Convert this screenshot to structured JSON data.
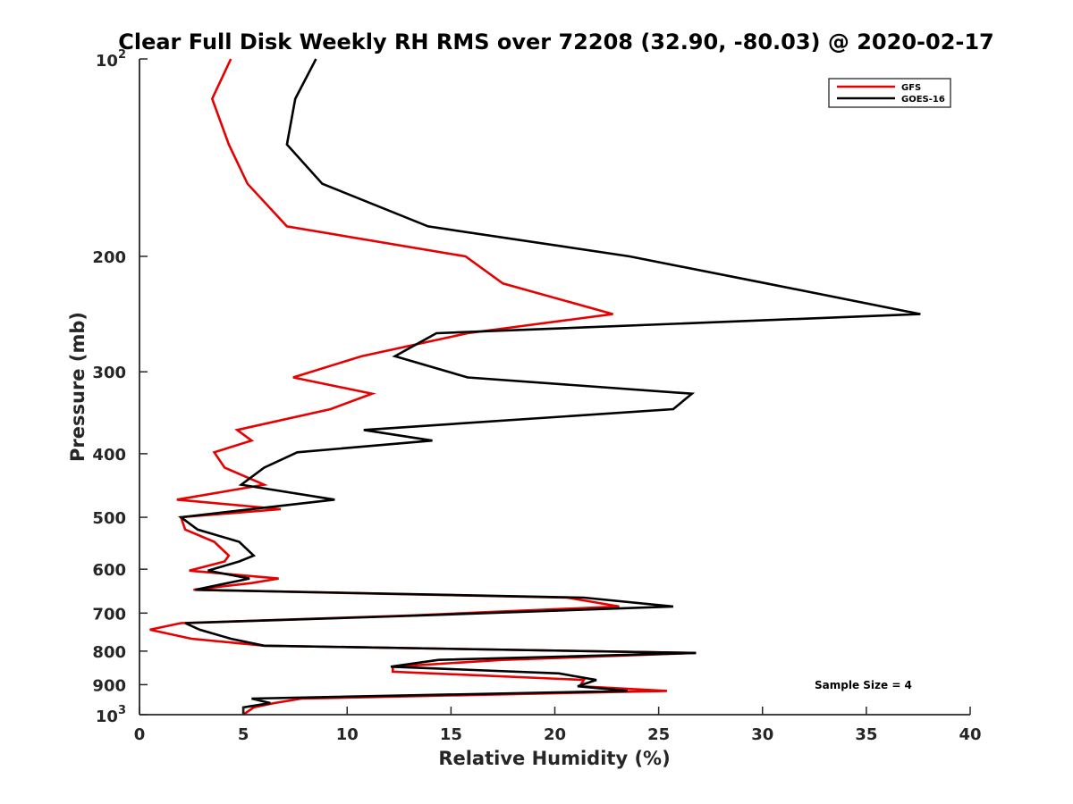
{
  "chart_data": {
    "type": "line",
    "title": "Clear Full Disk Weekly RH RMS over 72208 (32.90, -80.03) @ 2020-02-17",
    "xlabel": "Relative Humidity (%)",
    "ylabel": "Pressure (mb)",
    "xlim": [
      0,
      40
    ],
    "ylim": [
      100,
      1000
    ],
    "y_scale": "log",
    "y_reversed": true,
    "xticks": [
      0,
      5,
      10,
      15,
      20,
      25,
      30,
      35,
      40
    ],
    "yticks": [
      {
        "value": 100,
        "base": "10",
        "exp": "2"
      },
      {
        "value": 200,
        "label": "200"
      },
      {
        "value": 300,
        "label": "300"
      },
      {
        "value": 400,
        "label": "400"
      },
      {
        "value": 500,
        "label": "500"
      },
      {
        "value": 600,
        "label": "600"
      },
      {
        "value": 700,
        "label": "700"
      },
      {
        "value": 800,
        "label": "800"
      },
      {
        "value": 900,
        "label": "900"
      },
      {
        "value": 1000,
        "base": "10",
        "exp": "3"
      }
    ],
    "grid": false,
    "legend_position": "top-right",
    "annotation": "Sample Size = 4",
    "series": [
      {
        "name": "GFS",
        "color": "#e60000",
        "points": [
          [
            4.4,
            100
          ],
          [
            3.5,
            115
          ],
          [
            4.3,
            135
          ],
          [
            5.2,
            155
          ],
          [
            7.1,
            180
          ],
          [
            15.7,
            200
          ],
          [
            17.5,
            220
          ],
          [
            22.8,
            245
          ],
          [
            15.8,
            262
          ],
          [
            10.7,
            284
          ],
          [
            7.4,
            306
          ],
          [
            11.2,
            324
          ],
          [
            9.2,
            342
          ],
          [
            4.7,
            368
          ],
          [
            5.4,
            382
          ],
          [
            3.6,
            398
          ],
          [
            4.1,
            420
          ],
          [
            6.0,
            446
          ],
          [
            1.8,
            470
          ],
          [
            6.8,
            486
          ],
          [
            2.0,
            500
          ],
          [
            2.2,
            522
          ],
          [
            3.6,
            545
          ],
          [
            4.3,
            572
          ],
          [
            4.1,
            584
          ],
          [
            2.4,
            603
          ],
          [
            6.7,
            620
          ],
          [
            5.4,
            630
          ],
          [
            2.6,
            645
          ],
          [
            20.6,
            663
          ],
          [
            23.1,
            684
          ],
          [
            13.0,
            706
          ],
          [
            2.0,
            725
          ],
          [
            0.5,
            742
          ],
          [
            2.5,
            766
          ],
          [
            6.0,
            785
          ],
          [
            26.8,
            805
          ],
          [
            17.5,
            825
          ],
          [
            12.2,
            845
          ],
          [
            12.2,
            860
          ],
          [
            21.4,
            885
          ],
          [
            21.2,
            905
          ],
          [
            25.4,
            920
          ],
          [
            7.8,
            945
          ],
          [
            6.5,
            960
          ],
          [
            5.5,
            975
          ],
          [
            5.0,
            1000
          ]
        ]
      },
      {
        "name": "GOES-16",
        "color": "#000000",
        "points": [
          [
            8.5,
            100
          ],
          [
            7.5,
            115
          ],
          [
            7.1,
            135
          ],
          [
            8.8,
            155
          ],
          [
            13.9,
            180
          ],
          [
            23.6,
            200
          ],
          [
            30.2,
            220
          ],
          [
            37.6,
            245
          ],
          [
            14.3,
            262
          ],
          [
            12.3,
            284
          ],
          [
            15.8,
            306
          ],
          [
            26.6,
            324
          ],
          [
            25.7,
            342
          ],
          [
            10.8,
            368
          ],
          [
            14.1,
            382
          ],
          [
            7.6,
            398
          ],
          [
            6.0,
            420
          ],
          [
            4.9,
            446
          ],
          [
            9.4,
            470
          ],
          [
            2.0,
            500
          ],
          [
            2.8,
            522
          ],
          [
            4.8,
            545
          ],
          [
            5.5,
            572
          ],
          [
            4.8,
            584
          ],
          [
            3.3,
            603
          ],
          [
            5.3,
            620
          ],
          [
            2.7,
            645
          ],
          [
            21.4,
            663
          ],
          [
            25.7,
            684
          ],
          [
            13.5,
            706
          ],
          [
            2.2,
            725
          ],
          [
            2.9,
            742
          ],
          [
            4.4,
            766
          ],
          [
            6.0,
            785
          ],
          [
            26.8,
            805
          ],
          [
            14.4,
            825
          ],
          [
            12.1,
            845
          ],
          [
            20.2,
            865
          ],
          [
            22.0,
            885
          ],
          [
            21.1,
            905
          ],
          [
            23.5,
            920
          ],
          [
            5.4,
            945
          ],
          [
            6.3,
            960
          ],
          [
            5.0,
            975
          ],
          [
            5.0,
            1000
          ]
        ]
      }
    ]
  }
}
